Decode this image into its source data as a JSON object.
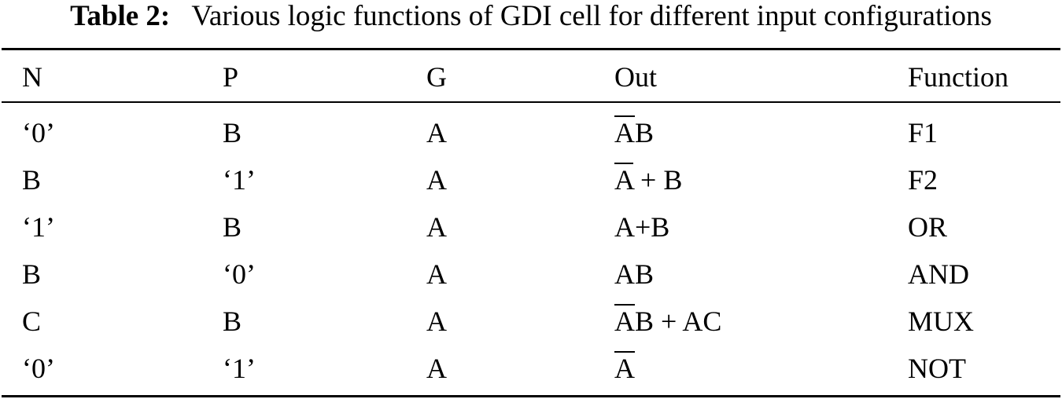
{
  "caption": {
    "label": "Table 2:",
    "text": "Various logic functions of GDI cell for different input configurations"
  },
  "table": {
    "headers": {
      "n": "N",
      "p": "P",
      "g": "G",
      "out": "Out",
      "function": "Function"
    },
    "rows": [
      {
        "n": "‘0’",
        "p": "B",
        "g": "A",
        "out_bar": "A",
        "out_rest": "B",
        "function": "F1"
      },
      {
        "n": "B",
        "p": "‘1’",
        "g": "A",
        "out_bar": "A",
        "out_rest": " + B",
        "function": "F2"
      },
      {
        "n": "‘1’",
        "p": "B",
        "g": "A",
        "out_bar": "",
        "out_rest": "A+B",
        "function": "OR"
      },
      {
        "n": "B",
        "p": "‘0’",
        "g": "A",
        "out_bar": "",
        "out_rest": "AB",
        "function": "AND"
      },
      {
        "n": "C",
        "p": "B",
        "g": "A",
        "out_bar": "A",
        "out_rest": "B + AC",
        "function": "MUX"
      },
      {
        "n": "‘0’",
        "p": "‘1’",
        "g": "A",
        "out_bar": "A",
        "out_rest": "",
        "function": "NOT"
      }
    ]
  }
}
